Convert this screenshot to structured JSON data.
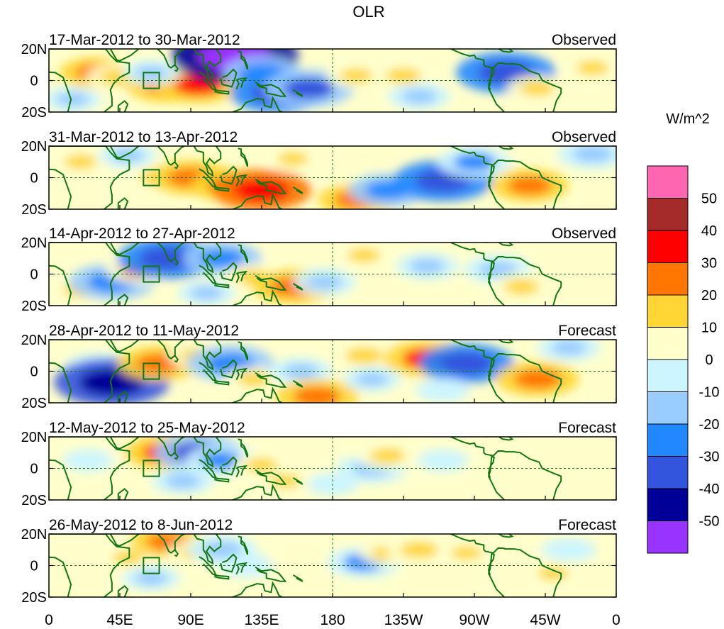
{
  "title": "OLR",
  "units_label": "W/m^2",
  "lat_ticks": [
    "20N",
    "0",
    "20S"
  ],
  "lon_ticks": [
    "0",
    "45E",
    "90E",
    "135E",
    "180",
    "135W",
    "90W",
    "45W",
    "0"
  ],
  "panels": [
    {
      "date_range": "17-Mar-2012 to 30-Mar-2012",
      "kind": "Observed"
    },
    {
      "date_range": "31-Mar-2012 to 13-Apr-2012",
      "kind": "Observed"
    },
    {
      "date_range": "14-Apr-2012 to 27-Apr-2012",
      "kind": "Observed"
    },
    {
      "date_range": "28-Apr-2012 to 11-May-2012",
      "kind": "Forecast"
    },
    {
      "date_range": "12-May-2012 to 25-May-2012",
      "kind": "Forecast"
    },
    {
      "date_range": "26-May-2012 to 8-Jun-2012",
      "kind": "Forecast"
    }
  ],
  "colorbar": {
    "colors": [
      "#ff66b2",
      "#a52a2a",
      "#ff0000",
      "#ff7700",
      "#ffd633",
      "#ffffcc",
      "#ccf5ff",
      "#99ccff",
      "#2288ff",
      "#3355dd",
      "#000099",
      "#9933ff"
    ],
    "labels": [
      "50",
      "40",
      "30",
      "20",
      "10",
      "0",
      "-10",
      "-20",
      "-30",
      "-40",
      "-50"
    ]
  },
  "fields": [
    [
      {
        "lon": 30,
        "lat": 5,
        "v": 22
      },
      {
        "lon": 45,
        "lat": 2,
        "v": 18
      },
      {
        "lon": 75,
        "lat": -3,
        "v": 28
      },
      {
        "lon": 95,
        "lat": -3,
        "v": 30
      },
      {
        "lon": 65,
        "lat": 5,
        "v": -12
      },
      {
        "lon": 118,
        "lat": 15,
        "v": -55
      },
      {
        "lon": 135,
        "lat": 5,
        "v": -25
      },
      {
        "lon": 145,
        "lat": -8,
        "v": -35
      },
      {
        "lon": 165,
        "lat": -5,
        "v": -32
      },
      {
        "lon": 195,
        "lat": 3,
        "v": 12
      },
      {
        "lon": 225,
        "lat": 3,
        "v": 15
      },
      {
        "lon": 235,
        "lat": -10,
        "v": -15
      },
      {
        "lon": 290,
        "lat": 5,
        "v": -38
      },
      {
        "lon": 310,
        "lat": -5,
        "v": 14
      },
      {
        "lon": 345,
        "lat": 8,
        "v": 12
      },
      {
        "lon": 15,
        "lat": -12,
        "v": -12
      }
    ],
    [
      {
        "lon": 20,
        "lat": 10,
        "v": 12
      },
      {
        "lon": 70,
        "lat": 0,
        "v": 18
      },
      {
        "lon": 90,
        "lat": 0,
        "v": 28
      },
      {
        "lon": 115,
        "lat": -5,
        "v": 25
      },
      {
        "lon": 135,
        "lat": -8,
        "v": 38
      },
      {
        "lon": 155,
        "lat": 12,
        "v": 10
      },
      {
        "lon": 180,
        "lat": 5,
        "v": 8
      },
      {
        "lon": 195,
        "lat": -14,
        "v": 24
      },
      {
        "lon": 215,
        "lat": -8,
        "v": -25
      },
      {
        "lon": 250,
        "lat": -2,
        "v": -38
      },
      {
        "lon": 270,
        "lat": 10,
        "v": -22
      },
      {
        "lon": 305,
        "lat": -5,
        "v": 25
      },
      {
        "lon": 345,
        "lat": 15,
        "v": -20
      },
      {
        "lon": 50,
        "lat": 14,
        "v": -12
      }
    ],
    [
      {
        "lon": 20,
        "lat": -10,
        "v": 15
      },
      {
        "lon": 40,
        "lat": -5,
        "v": -30
      },
      {
        "lon": 58,
        "lat": 3,
        "v": 20
      },
      {
        "lon": 75,
        "lat": 10,
        "v": -38
      },
      {
        "lon": 110,
        "lat": 10,
        "v": -25
      },
      {
        "lon": 130,
        "lat": -2,
        "v": 15
      },
      {
        "lon": 155,
        "lat": -8,
        "v": 28
      },
      {
        "lon": 175,
        "lat": -5,
        "v": -15
      },
      {
        "lon": 200,
        "lat": 12,
        "v": 12
      },
      {
        "lon": 240,
        "lat": 5,
        "v": -15
      },
      {
        "lon": 285,
        "lat": 3,
        "v": -18
      },
      {
        "lon": 300,
        "lat": -8,
        "v": 15
      },
      {
        "lon": 100,
        "lat": -12,
        "v": -12
      }
    ],
    [
      {
        "lon": 30,
        "lat": 3,
        "v": -15
      },
      {
        "lon": 40,
        "lat": -7,
        "v": -48
      },
      {
        "lon": 70,
        "lat": 5,
        "v": 28
      },
      {
        "lon": 95,
        "lat": 10,
        "v": 15
      },
      {
        "lon": 115,
        "lat": 5,
        "v": -30
      },
      {
        "lon": 130,
        "lat": -5,
        "v": 12
      },
      {
        "lon": 160,
        "lat": 0,
        "v": -15
      },
      {
        "lon": 170,
        "lat": -16,
        "v": 28
      },
      {
        "lon": 200,
        "lat": 10,
        "v": 18
      },
      {
        "lon": 240,
        "lat": 8,
        "v": 30
      },
      {
        "lon": 265,
        "lat": 5,
        "v": -35
      },
      {
        "lon": 310,
        "lat": -5,
        "v": 28
      },
      {
        "lon": 330,
        "lat": 15,
        "v": -15
      },
      {
        "lon": 205,
        "lat": -5,
        "v": -12
      },
      {
        "lon": 250,
        "lat": -12,
        "v": -10
      }
    ],
    [
      {
        "lon": 60,
        "lat": 10,
        "v": 18
      },
      {
        "lon": 75,
        "lat": 10,
        "v": 30
      },
      {
        "lon": 95,
        "lat": 10,
        "v": -32
      },
      {
        "lon": 110,
        "lat": 5,
        "v": -22
      },
      {
        "lon": 135,
        "lat": 2,
        "v": 12
      },
      {
        "lon": 150,
        "lat": -8,
        "v": 10
      },
      {
        "lon": 205,
        "lat": 0,
        "v": -20
      },
      {
        "lon": 215,
        "lat": 8,
        "v": 15
      },
      {
        "lon": 250,
        "lat": 5,
        "v": -8
      },
      {
        "lon": 85,
        "lat": -8,
        "v": -15
      },
      {
        "lon": 300,
        "lat": 0,
        "v": 8
      },
      {
        "lon": 25,
        "lat": 5,
        "v": -8
      },
      {
        "lon": 180,
        "lat": -10,
        "v": -8
      }
    ],
    [
      {
        "lon": 50,
        "lat": 5,
        "v": 10
      },
      {
        "lon": 75,
        "lat": 15,
        "v": 22
      },
      {
        "lon": 95,
        "lat": 8,
        "v": 15
      },
      {
        "lon": 110,
        "lat": 10,
        "v": -20
      },
      {
        "lon": 125,
        "lat": 0,
        "v": -10
      },
      {
        "lon": 200,
        "lat": 2,
        "v": -22
      },
      {
        "lon": 215,
        "lat": 8,
        "v": 12
      },
      {
        "lon": 235,
        "lat": 10,
        "v": 18
      },
      {
        "lon": 265,
        "lat": 8,
        "v": 10
      },
      {
        "lon": 320,
        "lat": -5,
        "v": 10
      },
      {
        "lon": 330,
        "lat": 10,
        "v": -10
      },
      {
        "lon": 65,
        "lat": -8,
        "v": -12
      },
      {
        "lon": 30,
        "lat": -5,
        "v": 8
      }
    ]
  ],
  "coastlines": {
    "africa": [
      [
        12,
        -20
      ],
      [
        14,
        -12
      ],
      [
        9,
        2
      ],
      [
        4,
        5
      ],
      [
        -10,
        6
      ],
      [
        -16,
        11
      ],
      [
        -17,
        15
      ],
      [
        -16,
        20
      ],
      [
        36,
        20
      ],
      [
        39,
        16
      ],
      [
        43,
        12
      ],
      [
        51,
        11
      ],
      [
        51,
        5
      ],
      [
        45,
        2
      ],
      [
        41,
        -2
      ],
      [
        39,
        -6
      ],
      [
        40,
        -11
      ],
      [
        40,
        -16
      ],
      [
        35,
        -20
      ]
    ],
    "madagascar": [
      [
        44,
        -20
      ],
      [
        44,
        -16
      ],
      [
        48,
        -13
      ],
      [
        50,
        -15
      ],
      [
        48,
        -20
      ]
    ],
    "arabia": [
      [
        39,
        20
      ],
      [
        43,
        13
      ],
      [
        45,
        12.5
      ],
      [
        52,
        16
      ],
      [
        57,
        20
      ]
    ],
    "india": [
      [
        69,
        20
      ],
      [
        73,
        16
      ],
      [
        76,
        9
      ],
      [
        77.5,
        8
      ],
      [
        80,
        10
      ],
      [
        80,
        15
      ],
      [
        84,
        19
      ],
      [
        86,
        20
      ]
    ],
    "srilanka": [
      [
        80,
        9.8
      ],
      [
        81.8,
        7.5
      ],
      [
        81,
        6
      ],
      [
        79.8,
        6.5
      ]
    ],
    "seasia": [
      [
        92,
        20
      ],
      [
        94,
        17
      ],
      [
        98,
        16
      ],
      [
        98,
        10
      ],
      [
        100,
        7
      ],
      [
        101,
        3
      ],
      [
        104,
        1.3
      ],
      [
        103.5,
        4
      ],
      [
        102,
        6
      ],
      [
        100,
        9
      ],
      [
        102,
        12
      ],
      [
        105,
        9
      ],
      [
        106,
        10
      ],
      [
        109,
        12
      ],
      [
        109,
        16
      ],
      [
        106,
        20
      ]
    ],
    "sumatra": [
      [
        95.3,
        5.5
      ],
      [
        98,
        4
      ],
      [
        104,
        -2
      ],
      [
        106,
        -6
      ],
      [
        104,
        -5.5
      ],
      [
        101,
        -2
      ],
      [
        98,
        1
      ]
    ],
    "java": [
      [
        105,
        -6
      ],
      [
        108,
        -6.5
      ],
      [
        114,
        -7
      ],
      [
        114,
        -8.5
      ],
      [
        108,
        -7.8
      ],
      [
        105,
        -7
      ]
    ],
    "borneo": [
      [
        109,
        1.5
      ],
      [
        110,
        -2.5
      ],
      [
        116,
        -4
      ],
      [
        118,
        1
      ],
      [
        119,
        5
      ],
      [
        117,
        7
      ],
      [
        116,
        6
      ],
      [
        113,
        3
      ],
      [
        110,
        2
      ]
    ],
    "sulawesi": [
      [
        119,
        -5.5
      ],
      [
        120.5,
        -2
      ],
      [
        119.5,
        0.5
      ],
      [
        121,
        1
      ],
      [
        125,
        1.5
      ],
      [
        123,
        -1
      ],
      [
        122,
        -4.5
      ]
    ],
    "philippines": [
      [
        120,
        18.5
      ],
      [
        122,
        18
      ],
      [
        122,
        14
      ],
      [
        124,
        12.5
      ],
      [
        126,
        7
      ],
      [
        126,
        9
      ],
      [
        124,
        14
      ],
      [
        122,
        16
      ]
    ],
    "newguinea": [
      [
        131,
        -1
      ],
      [
        135,
        -3.5
      ],
      [
        141,
        -2.6
      ],
      [
        146,
        -5
      ],
      [
        150,
        -10
      ],
      [
        147,
        -10
      ],
      [
        143,
        -9
      ],
      [
        138,
        -8
      ],
      [
        138,
        -5
      ],
      [
        134,
        -4
      ],
      [
        132,
        -2.5
      ]
    ],
    "australia": [
      [
        114,
        -21
      ],
      [
        122,
        -18
      ],
      [
        125,
        -14
      ],
      [
        130,
        -12.3
      ],
      [
        132,
        -11.5
      ],
      [
        136,
        -12
      ],
      [
        137,
        -16
      ],
      [
        141,
        -17
      ],
      [
        142,
        -11
      ],
      [
        144,
        -14.5
      ],
      [
        146,
        -19
      ],
      [
        148,
        -20
      ]
    ],
    "solomons": [
      [
        155,
        -6
      ],
      [
        160,
        -9
      ],
      [
        161,
        -10
      ],
      [
        157,
        -8
      ]
    ],
    "centralamerica": [
      [
        255,
        20
      ],
      [
        262,
        17
      ],
      [
        267,
        15.5
      ],
      [
        270,
        16
      ],
      [
        271,
        14
      ],
      [
        276,
        13
      ],
      [
        276,
        10
      ],
      [
        277,
        9
      ],
      [
        282,
        8
      ],
      [
        283,
        9
      ],
      [
        285,
        11
      ],
      [
        288,
        11
      ],
      [
        290,
        10.5
      ],
      [
        295,
        10.5
      ],
      [
        299,
        10
      ],
      [
        302,
        8
      ],
      [
        305,
        6
      ],
      [
        308,
        5
      ],
      [
        311,
        4
      ],
      [
        313,
        0
      ],
      [
        320,
        -3
      ],
      [
        325,
        -5
      ],
      [
        325,
        -8
      ],
      [
        322,
        -13
      ],
      [
        320,
        -20
      ]
    ],
    "southamerica": [
      [
        280,
        -6
      ],
      [
        279,
        -3
      ],
      [
        280,
        1
      ],
      [
        282,
        4
      ],
      [
        282.5,
        7
      ],
      [
        281,
        7.5
      ],
      [
        280,
        -2
      ],
      [
        279,
        -5
      ],
      [
        284,
        -15
      ],
      [
        289,
        -20
      ]
    ],
    "caribbean": [
      [
        277,
        20
      ],
      [
        284,
        21
      ],
      [
        288,
        18.5
      ],
      [
        292,
        18
      ],
      [
        294,
        18.5
      ],
      [
        292,
        20
      ]
    ]
  }
}
